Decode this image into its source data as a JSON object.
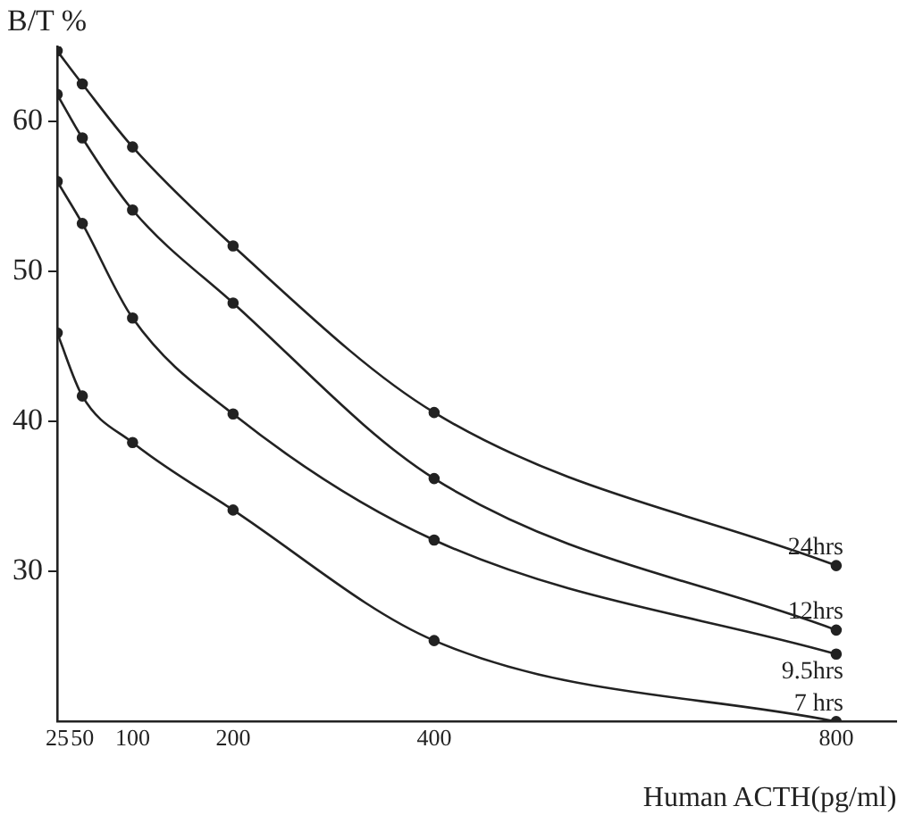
{
  "chart_data": {
    "type": "line",
    "xlabel": "Human ACTH(pg/ml)",
    "ylabel": "B/T %",
    "x": [
      25,
      50,
      100,
      200,
      400,
      800
    ],
    "series": [
      {
        "name": "24hrs",
        "color": "#222222",
        "values": [
          64.7,
          62.5,
          58.3,
          51.7,
          40.6,
          30.4
        ]
      },
      {
        "name": "12hrs",
        "color": "#222222",
        "values": [
          61.8,
          58.9,
          54.1,
          47.9,
          36.2,
          26.1
        ]
      },
      {
        "name": "9.5hrs",
        "color": "#222222",
        "values": [
          56.0,
          53.2,
          46.9,
          40.5,
          32.1,
          24.5
        ]
      },
      {
        "name": "7 hrs",
        "color": "#222222",
        "values": [
          45.9,
          41.7,
          38.6,
          34.1,
          25.4,
          20
        ]
      }
    ],
    "xlim": [
      25,
      860
    ],
    "xticks": [
      25,
      50,
      100,
      200,
      400,
      800
    ],
    "ylim": [
      20,
      65
    ],
    "yticks": [
      30,
      40,
      50,
      60
    ],
    "grid": false,
    "legend": false,
    "marker": "circle",
    "line_style": "solid"
  }
}
